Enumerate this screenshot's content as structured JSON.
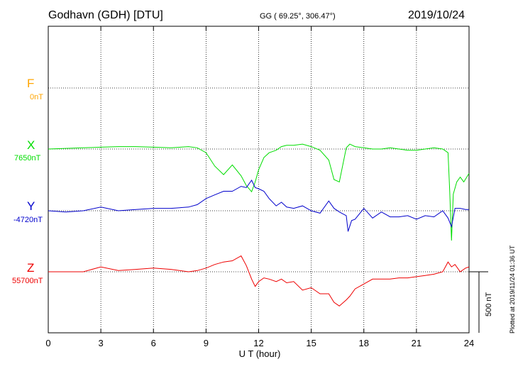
{
  "header": {
    "station": "Godhavn (GDH)  [DTU]",
    "coords": "GG ( 69.25°, 306.47°)",
    "date": "2019/10/24"
  },
  "colors": {
    "F": "#ffa500",
    "X": "#00dd00",
    "Y": "#0000cc",
    "Z": "#ee0000"
  },
  "labels": {
    "F": {
      "name": "F",
      "base": "0nT"
    },
    "X": {
      "name": "X",
      "base": "7650nT"
    },
    "Y": {
      "name": "Y",
      "base": "-4720nT"
    },
    "Z": {
      "name": "Z",
      "base": "55700nT"
    }
  },
  "scale_label": "500 nT",
  "plotted_note": "Plotted at 2019/11/24 01:36 UT",
  "chart_data": {
    "type": "line",
    "xlabel": "U T (hour)",
    "xlim": [
      0,
      24
    ],
    "xticks": [
      0,
      3,
      6,
      9,
      12,
      15,
      18,
      21,
      24
    ],
    "scale_bar_nT": 500,
    "series": [
      {
        "name": "F",
        "baseline_nT": 0,
        "x": [],
        "values": []
      },
      {
        "name": "X",
        "baseline_nT": 7650,
        "x": [
          0,
          1,
          2,
          3,
          4,
          5,
          6,
          7,
          8,
          8.5,
          9,
          9.5,
          10,
          10.5,
          11,
          11.3,
          11.6,
          11.8,
          12,
          12.3,
          12.6,
          13,
          13.3,
          13.6,
          14,
          14.5,
          15,
          15.5,
          16,
          16.3,
          16.6,
          17,
          17.2,
          17.5,
          18,
          18.5,
          19,
          19.5,
          20,
          20.5,
          21,
          21.5,
          22,
          22.5,
          22.8,
          22.9,
          23,
          23.1,
          23.3,
          23.5,
          23.7,
          24
        ],
        "values": [
          7650,
          7655,
          7660,
          7665,
          7670,
          7670,
          7665,
          7660,
          7670,
          7660,
          7620,
          7510,
          7440,
          7520,
          7430,
          7350,
          7300,
          7380,
          7480,
          7580,
          7620,
          7640,
          7670,
          7680,
          7680,
          7690,
          7670,
          7640,
          7560,
          7400,
          7380,
          7660,
          7690,
          7670,
          7660,
          7650,
          7650,
          7660,
          7650,
          7640,
          7640,
          7650,
          7660,
          7650,
          7620,
          7300,
          6900,
          7280,
          7380,
          7420,
          7380,
          7450
        ]
      },
      {
        "name": "Y",
        "baseline_nT": -4720,
        "x": [
          0,
          1,
          2,
          3,
          4,
          5,
          6,
          7,
          8,
          8.5,
          9,
          9.5,
          10,
          10.5,
          11,
          11.3,
          11.6,
          11.8,
          12,
          12.3,
          12.6,
          13,
          13.3,
          13.6,
          14,
          14.5,
          15,
          15.5,
          16,
          16.3,
          16.6,
          17,
          17.1,
          17.3,
          17.5,
          18,
          18.5,
          19,
          19.5,
          20,
          20.5,
          21,
          21.5,
          22,
          22.5,
          22.8,
          23,
          23.2,
          23.5,
          23.8,
          24
        ],
        "values": [
          -4720,
          -4730,
          -4720,
          -4690,
          -4720,
          -4710,
          -4700,
          -4700,
          -4690,
          -4670,
          -4620,
          -4590,
          -4560,
          -4560,
          -4520,
          -4530,
          -4470,
          -4530,
          -4540,
          -4560,
          -4620,
          -4680,
          -4650,
          -4690,
          -4700,
          -4680,
          -4720,
          -4740,
          -4640,
          -4700,
          -4730,
          -4760,
          -4890,
          -4800,
          -4790,
          -4700,
          -4780,
          -4730,
          -4770,
          -4770,
          -4760,
          -4790,
          -4760,
          -4770,
          -4720,
          -4780,
          -4850,
          -4700,
          -4700,
          -4710,
          -4710
        ]
      },
      {
        "name": "Z",
        "baseline_nT": 55700,
        "x": [
          0,
          1,
          2,
          3,
          4,
          5,
          6,
          7,
          8,
          8.5,
          9,
          9.5,
          10,
          10.5,
          11,
          11.3,
          11.6,
          11.8,
          12,
          12.3,
          12.6,
          13,
          13.3,
          13.6,
          14,
          14.5,
          15,
          15.5,
          16,
          16.3,
          16.6,
          17,
          17.2,
          17.5,
          18,
          18.5,
          19,
          19.5,
          20,
          20.5,
          21,
          21.5,
          22,
          22.5,
          22.8,
          23,
          23.2,
          23.5,
          23.8,
          24
        ],
        "values": [
          55700,
          55700,
          55700,
          55740,
          55710,
          55720,
          55730,
          55720,
          55700,
          55710,
          55730,
          55760,
          55780,
          55790,
          55830,
          55750,
          55640,
          55580,
          55620,
          55650,
          55640,
          55620,
          55640,
          55610,
          55620,
          55550,
          55570,
          55520,
          55520,
          55450,
          55420,
          55470,
          55500,
          55560,
          55600,
          55640,
          55640,
          55640,
          55650,
          55650,
          55660,
          55670,
          55680,
          55700,
          55780,
          55740,
          55760,
          55700,
          55730,
          55740
        ]
      }
    ]
  }
}
